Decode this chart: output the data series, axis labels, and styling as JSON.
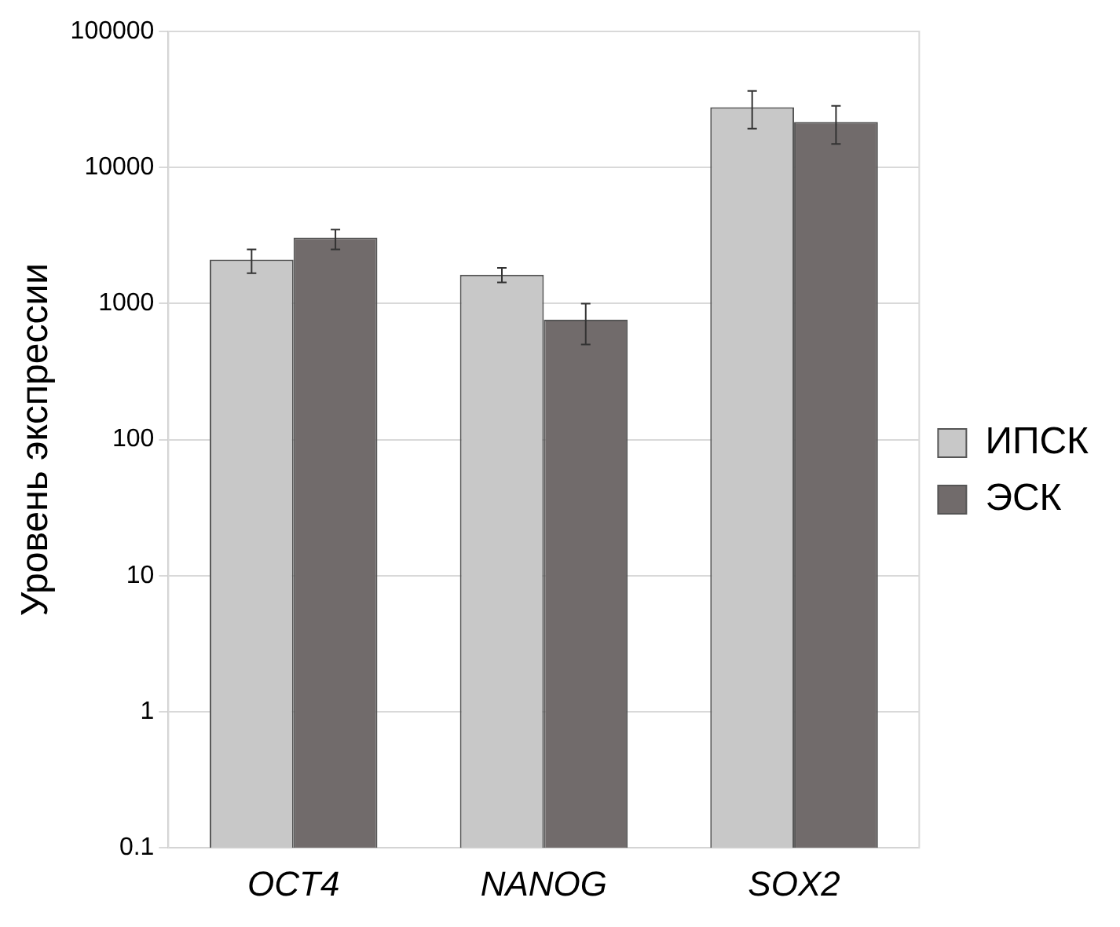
{
  "chart_data": {
    "type": "bar",
    "ylabel": "Уровень экспрессии",
    "categories": [
      "OCT4",
      "NANOG",
      "SOX2"
    ],
    "series": [
      {
        "name": "ИПСК",
        "color": "#c8c8c8",
        "values": [
          2100,
          1630,
          27700
        ],
        "errors": [
          [
            1670,
            2500
          ],
          [
            1430,
            1830
          ],
          [
            19300,
            36500
          ]
        ]
      },
      {
        "name": "ЭСК",
        "color": "#716b6b",
        "values": [
          3050,
          760,
          21600
        ],
        "errors": [
          [
            2500,
            3500
          ],
          [
            500,
            1000
          ],
          [
            14900,
            28400
          ]
        ]
      }
    ],
    "log": "y",
    "ylim": [
      0.1,
      100000
    ],
    "yticks": [
      0.1,
      1,
      10,
      100,
      1000,
      10000,
      100000
    ],
    "grid": "y",
    "legend": "right"
  }
}
